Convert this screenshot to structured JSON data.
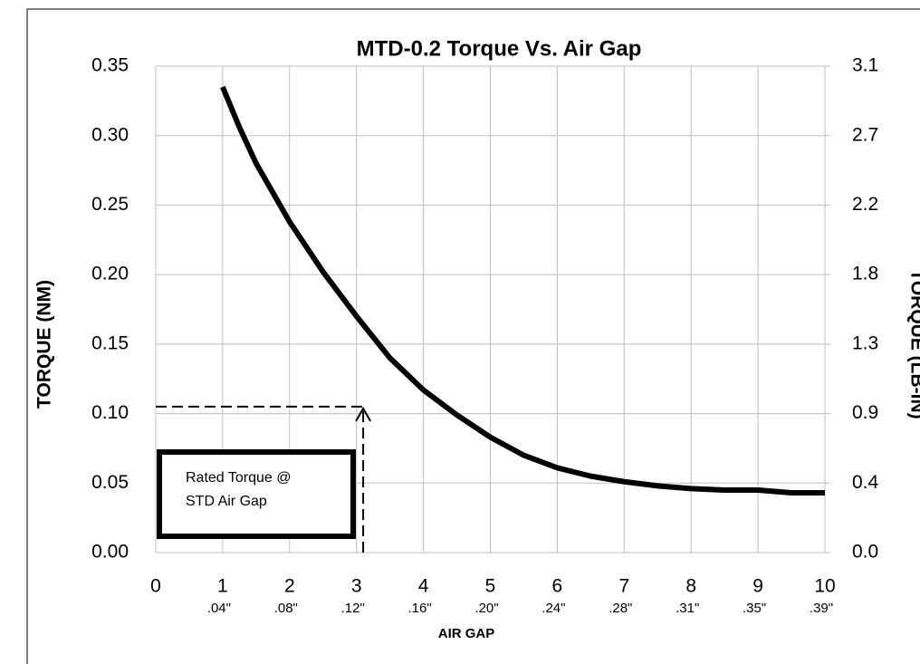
{
  "chart_data": {
    "type": "line",
    "title": "MTD-0.2  Torque Vs. Air Gap",
    "y_label": "TORQUE (NM)",
    "y2_label": "TORQUE (LB-IN)",
    "x_label": "AIR GAP",
    "xlim": [
      0,
      10
    ],
    "xticks": [
      0,
      1,
      2,
      3,
      4,
      5,
      6,
      7,
      8,
      9,
      10
    ],
    "x_secondary_labels": [
      null,
      ".04\"",
      ".08\"",
      ".12\"",
      ".16\"",
      ".20\"",
      ".24\"",
      ".28\"",
      ".31\"",
      ".35\"",
      ".39\""
    ],
    "ylim": [
      0,
      0.35
    ],
    "yticks": [
      {
        "value": 0,
        "label": "0.00"
      },
      {
        "value": 0.05,
        "label": "0.05"
      },
      {
        "value": 0.1,
        "label": "0.10"
      },
      {
        "value": 0.15,
        "label": "0.15"
      },
      {
        "value": 0.2,
        "label": "0.20"
      },
      {
        "value": 0.25,
        "label": "0.25"
      },
      {
        "value": 0.3,
        "label": "0.30"
      },
      {
        "value": 0.35,
        "label": "0.35"
      }
    ],
    "y2lim": [
      0,
      3.0975
    ],
    "y2ticks": [
      {
        "value": 0,
        "label": "0.0"
      },
      {
        "value": 0.4425,
        "label": "0.4"
      },
      {
        "value": 0.885,
        "label": "0.9"
      },
      {
        "value": 1.3275,
        "label": "1.3"
      },
      {
        "value": 1.77,
        "label": "1.8"
      },
      {
        "value": 2.2125,
        "label": "2.2"
      },
      {
        "value": 2.655,
        "label": "2.7"
      },
      {
        "value": 3.0975,
        "label": "3.1"
      }
    ],
    "grid": true,
    "x": [
      1,
      1.25,
      1.5,
      2,
      2.5,
      3,
      3.5,
      4,
      4.5,
      5,
      5.5,
      6,
      6.5,
      7,
      7.5,
      8,
      8.5,
      9,
      9.5,
      10
    ],
    "series": [
      {
        "color": "#000000",
        "values": [
          0.335,
          0.306,
          0.28,
          0.238,
          0.202,
          0.17,
          0.14,
          0.117,
          0.099,
          0.083,
          0.07,
          0.061,
          0.055,
          0.051,
          0.048,
          0.046,
          0.045,
          0.045,
          0.043,
          0.043
        ]
      }
    ],
    "annotation": {
      "lines": [
        "Rated Torque @",
        "STD Air Gap"
      ],
      "x": 3.1,
      "y": 0.105
    }
  }
}
